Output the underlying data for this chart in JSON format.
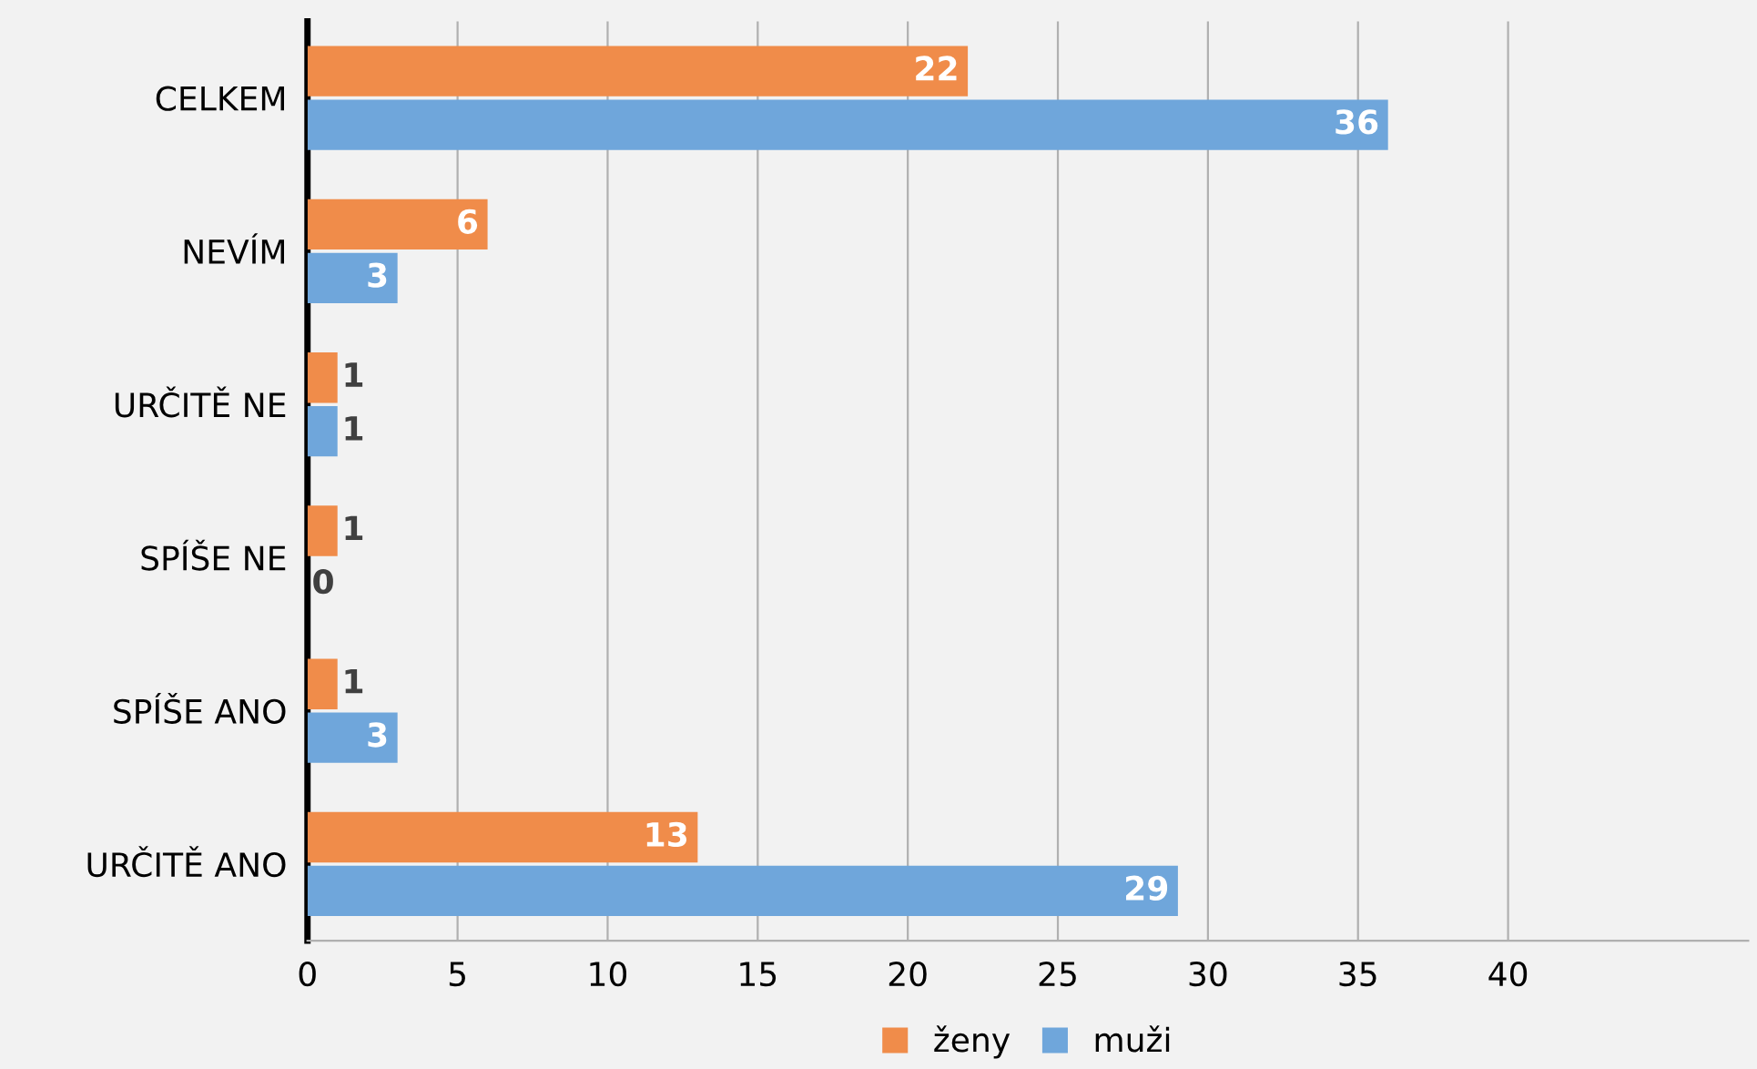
{
  "chart_data": {
    "type": "bar",
    "orientation": "horizontal",
    "categories": [
      "CELKEM",
      "NEVÍM",
      "URČITĚ NE",
      "SPÍŠE NE",
      "SPÍŠE ANO",
      "URČITĚ ANO"
    ],
    "series": [
      {
        "name": "ženy",
        "color": "#f08c4a",
        "values": [
          22,
          6,
          1,
          1,
          1,
          13
        ]
      },
      {
        "name": "muži",
        "color": "#6fa6db",
        "values": [
          36,
          3,
          1,
          0,
          3,
          29
        ]
      }
    ],
    "xlim": [
      0,
      48
    ],
    "xticks": [
      0,
      5,
      10,
      15,
      20,
      25,
      30,
      35,
      40
    ],
    "grid": "x",
    "legend": "bottom",
    "data_labels": true
  }
}
